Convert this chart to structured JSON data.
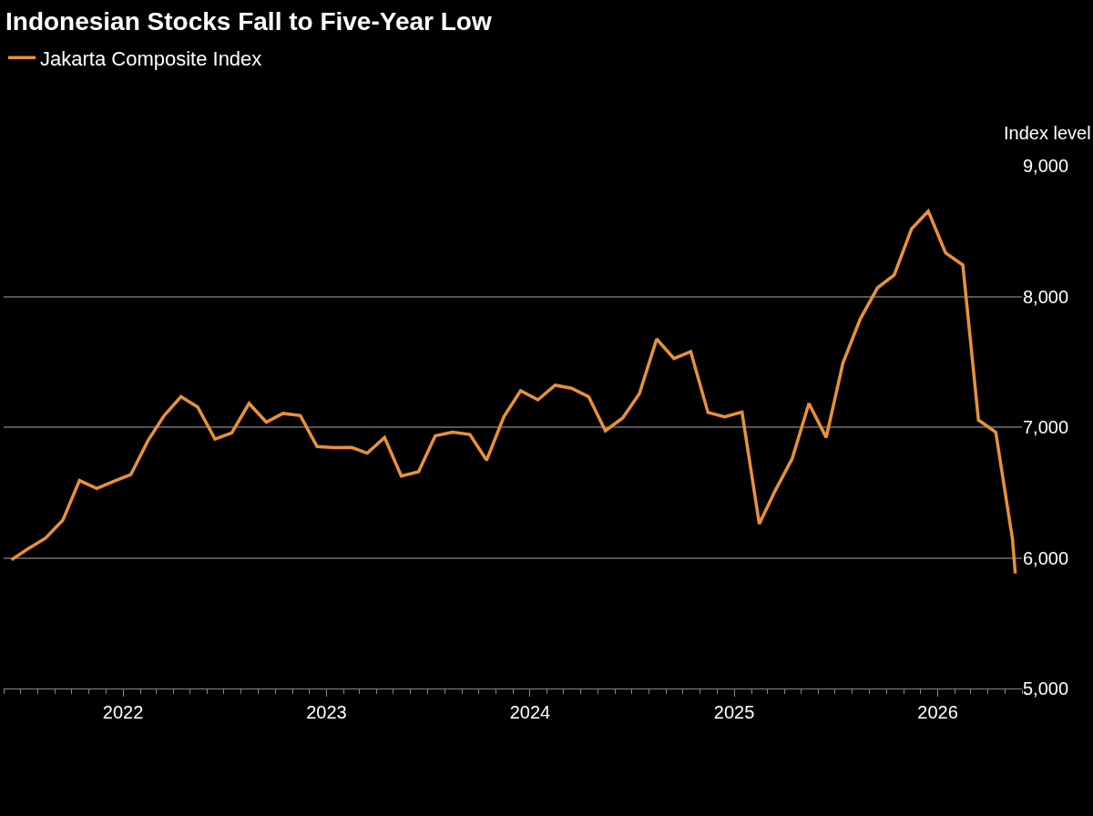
{
  "chart_data": {
    "type": "line",
    "title": "Indonesian Stocks Fall to Five-Year Low",
    "ylabel": "Index level",
    "x": [
      "2021-06-15",
      "2021-07-15",
      "2021-08-15",
      "2021-09-15",
      "2021-10-15",
      "2021-11-15",
      "2021-12-15",
      "2022-01-15",
      "2022-02-15",
      "2022-03-15",
      "2022-04-15",
      "2022-05-15",
      "2022-06-15",
      "2022-07-15",
      "2022-08-15",
      "2022-09-15",
      "2022-10-15",
      "2022-11-15",
      "2022-12-15",
      "2023-01-15",
      "2023-02-15",
      "2023-03-15",
      "2023-04-15",
      "2023-05-15",
      "2023-06-15",
      "2023-07-15",
      "2023-08-15",
      "2023-09-15",
      "2023-10-15",
      "2023-11-15",
      "2023-12-15",
      "2024-01-15",
      "2024-02-15",
      "2024-03-15",
      "2024-04-15",
      "2024-05-15",
      "2024-06-15",
      "2024-07-15",
      "2024-08-15",
      "2024-09-15",
      "2024-10-15",
      "2024-11-15",
      "2024-12-15",
      "2025-01-15",
      "2025-02-15",
      "2025-03-15",
      "2025-04-15",
      "2025-05-15",
      "2025-06-15",
      "2025-07-15",
      "2025-08-15",
      "2025-09-15",
      "2025-10-15",
      "2025-11-15",
      "2025-12-15",
      "2026-01-15",
      "2026-02-15",
      "2026-03-15",
      "2026-04-15",
      "2026-05-15",
      "2026-05-20"
    ],
    "series": [
      {
        "name": "Jakarta Composite Index",
        "color": "#e8913a",
        "values": [
          5985,
          6069,
          6150,
          6287,
          6592,
          6531,
          6585,
          6636,
          6898,
          7084,
          7233,
          7153,
          6909,
          6956,
          7181,
          7038,
          7105,
          7088,
          6852,
          6843,
          6845,
          6801,
          6921,
          6626,
          6659,
          6933,
          6961,
          6944,
          6747,
          7079,
          7279,
          7209,
          7321,
          7298,
          7233,
          6972,
          7070,
          7256,
          7674,
          7525,
          7578,
          7112,
          7079,
          7116,
          6259,
          6510,
          6759,
          7181,
          6921,
          7491,
          7827,
          8066,
          8164,
          8517,
          8652,
          8334,
          8240,
          7054,
          6961,
          6143,
          5881
        ]
      }
    ],
    "xlim": [
      "2021-06-01",
      "2026-06-01"
    ],
    "xticks": [
      "2022",
      "2023",
      "2024",
      "2025",
      "2026"
    ],
    "ylim": [
      5000,
      9000
    ],
    "yticks": [
      {
        "value": 5000,
        "label": "5,000"
      },
      {
        "value": 6000,
        "label": "6,000"
      },
      {
        "value": 7000,
        "label": "7,000"
      },
      {
        "value": 8000,
        "label": "8,000"
      },
      {
        "value": 9000,
        "label": "9,000"
      }
    ],
    "grid": "y",
    "legend": "top left",
    "marker": "none",
    "line_style": "solid"
  }
}
